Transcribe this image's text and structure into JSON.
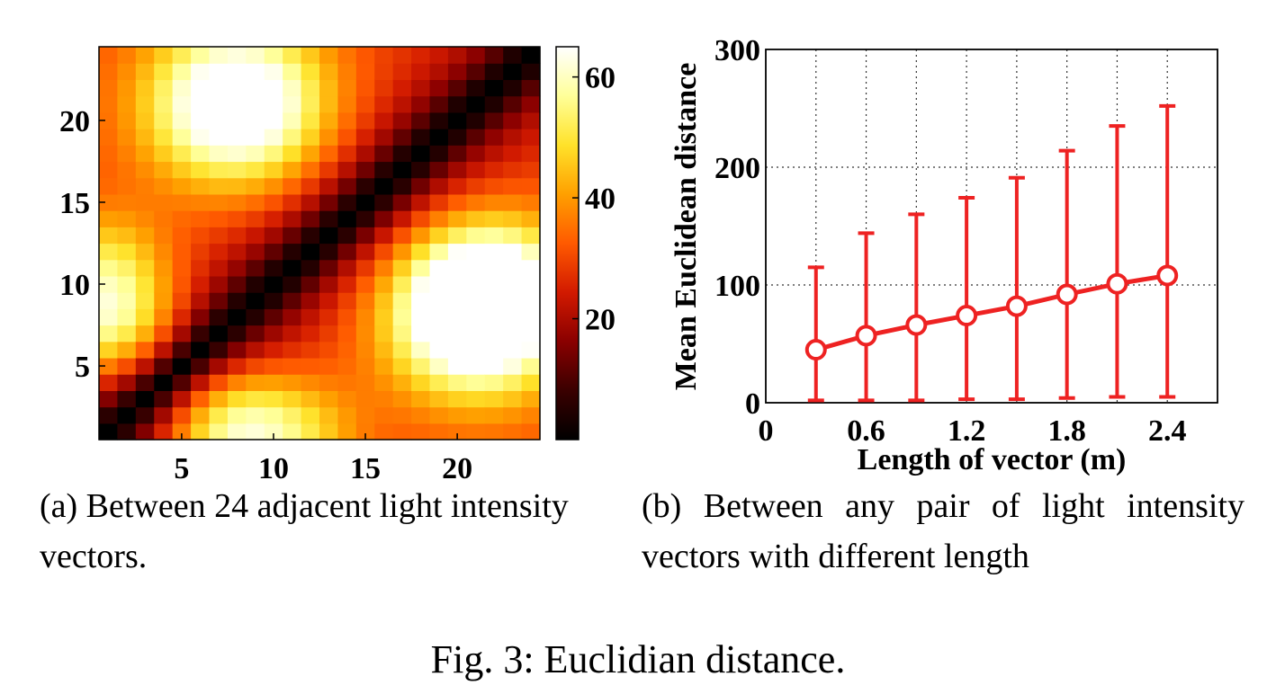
{
  "figure_caption": "Fig. 3: Euclidian distance.",
  "captions": {
    "a": "(a) Between 24 adjacent light intensity vectors.",
    "b": "(b) Between any pair of light intensity vectors with different length"
  },
  "colors": {
    "line": "#ee2222",
    "colormap": [
      "#000000",
      "#3a0000",
      "#8a0000",
      "#d21a00",
      "#ff5a00",
      "#ffa000",
      "#ffe22a",
      "#ffff99",
      "#ffffff"
    ]
  },
  "chart_data": [
    {
      "type": "heatmap",
      "matrix_size": 24,
      "x_ticks": [
        5,
        10,
        15,
        20
      ],
      "y_ticks": [
        5,
        10,
        15,
        20
      ],
      "xlim": [
        0.5,
        24.5
      ],
      "ylim": [
        0.5,
        24.5
      ],
      "colorbar": {
        "range": [
          0,
          65
        ],
        "ticks": [
          20,
          40,
          60
        ]
      },
      "colormap": "hot",
      "values_note": "Zero on the diagonal; maxima ~62-65 near (i=8,j=21), (i=21,j=8) and (i=22,j=10); moderate ~40-50 near (1,8) and (8,1)."
    },
    {
      "type": "line",
      "x": [
        0.3,
        0.6,
        0.9,
        1.2,
        1.5,
        1.8,
        2.1,
        2.4
      ],
      "y": [
        45,
        57,
        66,
        74,
        82,
        92,
        101,
        108
      ],
      "error_upper": [
        115,
        144,
        160,
        174,
        191,
        214,
        235,
        252
      ],
      "error_lower": [
        2,
        2,
        2,
        3,
        3,
        4,
        5,
        5
      ],
      "xlabel": "Length of vector (m)",
      "ylabel": "Mean Euclidean distance",
      "xlim": [
        0,
        2.7
      ],
      "ylim": [
        0,
        300
      ],
      "x_ticks": [
        "0",
        "0.6",
        "1.2",
        "1.8",
        "2.4"
      ],
      "y_ticks": [
        "0",
        "100",
        "200",
        "300"
      ],
      "grid": true,
      "marker": "circle"
    }
  ]
}
